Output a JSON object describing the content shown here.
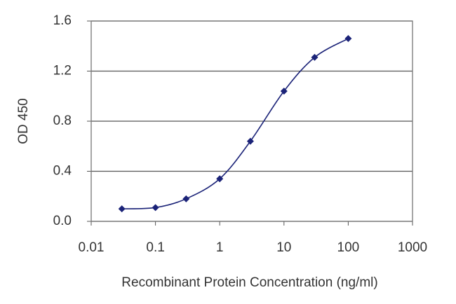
{
  "chart_data": {
    "type": "line",
    "x_label": "Recombinant Protein Concentration (ng/ml)",
    "y_label": "OD 450",
    "x": [
      0.03,
      0.1,
      0.3,
      1,
      3,
      10,
      30,
      100
    ],
    "series": [
      {
        "color": "#1b2378",
        "values": [
          0.1,
          0.11,
          0.18,
          0.34,
          0.64,
          1.04,
          1.31,
          1.46
        ]
      }
    ],
    "xlim": [
      0.01,
      1000
    ],
    "xticks": [
      0.01,
      0.1,
      1,
      10,
      100,
      1000
    ],
    "xscale": "log",
    "ylim": [
      0,
      1.6
    ],
    "yticks": [
      {
        "value": 0,
        "label": "0.0"
      },
      0.4,
      0.8,
      1.2,
      1.6
    ],
    "grid": true
  }
}
